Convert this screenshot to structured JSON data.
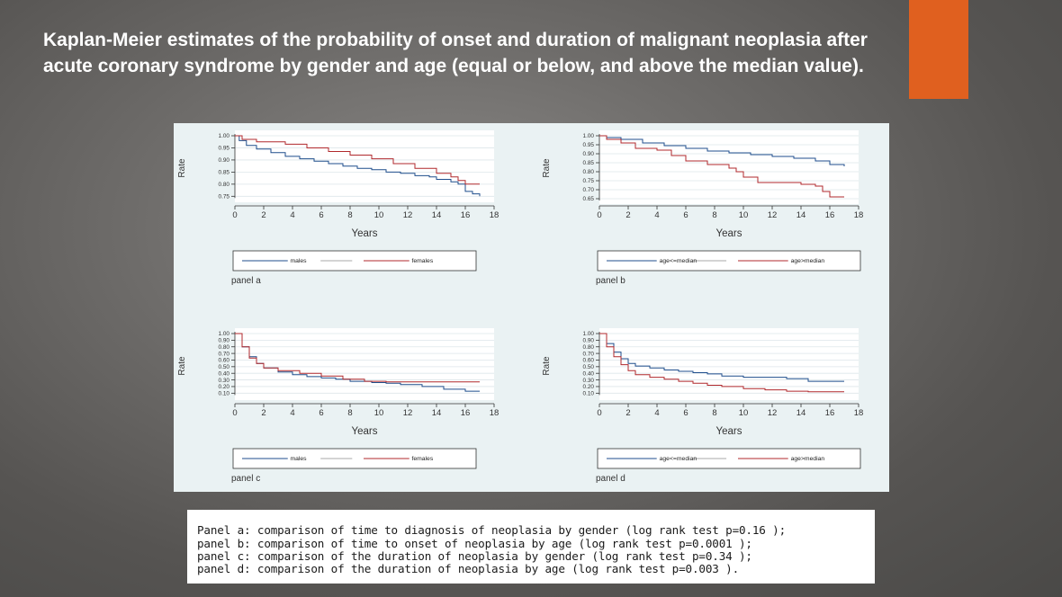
{
  "slide": {
    "title": "Kaplan-Meier estimates of the probability of onset and duration of malignant neoplasia after acute coronary syndrome by gender and age (equal or below, and above the median value).",
    "accent_color": "#e0601f"
  },
  "colors": {
    "blue": "#1f4e8c",
    "red": "#b0282c",
    "figure_bg": "#eaf2f3"
  },
  "caption": {
    "lines": [
      "Panel a: comparison of time to diagnosis of neoplasia by gender (log rank test p=0.16 );",
      "panel b: comparison of time to onset of neoplasia by age (log rank test p=0.0001 );",
      "panel c: comparison of the duration of neoplasia by gender (log rank test p=0.34 );",
      "panel d: comparison of the duration of neoplasia by age (log rank test p=0.003 )."
    ]
  },
  "chart_data": [
    {
      "type": "line",
      "panel_label": "panel a",
      "xlabel": "Years",
      "ylabel": "Rate",
      "xlim": [
        0,
        18
      ],
      "ylim": [
        0.74,
        1.0
      ],
      "xticks": [
        "0",
        "2",
        "4",
        "6",
        "8",
        "10",
        "12",
        "14",
        "16",
        "18"
      ],
      "yticks": [
        "1.00",
        "0.95",
        "0.90",
        "0.85",
        "0.80",
        "0.75"
      ],
      "series": [
        {
          "name": "males",
          "color": "blue",
          "x": [
            0,
            0.3,
            0.8,
            1.5,
            2.5,
            3.5,
            4.5,
            5.5,
            6.5,
            7.5,
            8.5,
            9.5,
            10.5,
            11.5,
            12.5,
            13.5,
            14.0,
            15.0,
            15.5,
            16.0,
            16.5,
            17.0
          ],
          "y": [
            1.0,
            0.98,
            0.96,
            0.945,
            0.93,
            0.915,
            0.905,
            0.895,
            0.885,
            0.875,
            0.865,
            0.86,
            0.85,
            0.845,
            0.835,
            0.83,
            0.82,
            0.81,
            0.8,
            0.77,
            0.76,
            0.75
          ]
        },
        {
          "name": "females",
          "color": "red",
          "x": [
            0,
            0.5,
            1.5,
            3.5,
            5.0,
            6.5,
            8.0,
            9.5,
            11.0,
            12.5,
            14.0,
            15.0,
            15.5,
            16.0,
            17.0
          ],
          "y": [
            1.0,
            0.985,
            0.975,
            0.965,
            0.95,
            0.935,
            0.92,
            0.905,
            0.885,
            0.865,
            0.845,
            0.83,
            0.815,
            0.8,
            0.8
          ]
        }
      ]
    },
    {
      "type": "line",
      "panel_label": "panel b",
      "xlabel": "Years",
      "ylabel": "Rate",
      "xlim": [
        0,
        18
      ],
      "ylim": [
        0.64,
        1.0
      ],
      "xticks": [
        "0",
        "2",
        "4",
        "6",
        "8",
        "10",
        "12",
        "14",
        "16",
        "18"
      ],
      "yticks": [
        "1.00",
        "0.95",
        "0.90",
        "0.85",
        "0.80",
        "0.75",
        "0.70",
        "0.65"
      ],
      "series": [
        {
          "name": "age<=median",
          "color": "blue",
          "x": [
            0,
            0.5,
            1.5,
            3.0,
            4.5,
            6.0,
            7.5,
            9.0,
            10.5,
            12.0,
            13.5,
            15.0,
            16.0,
            17.0
          ],
          "y": [
            1.0,
            0.99,
            0.98,
            0.96,
            0.945,
            0.93,
            0.915,
            0.905,
            0.895,
            0.885,
            0.875,
            0.86,
            0.84,
            0.83
          ]
        },
        {
          "name": "age>median",
          "color": "red",
          "x": [
            0,
            0.5,
            1.5,
            2.5,
            4.0,
            5.0,
            6.0,
            7.5,
            9.0,
            9.5,
            10.0,
            11.0,
            12.5,
            14.0,
            15.0,
            15.5,
            16.0,
            17.0
          ],
          "y": [
            1.0,
            0.98,
            0.96,
            0.93,
            0.92,
            0.89,
            0.86,
            0.84,
            0.82,
            0.8,
            0.77,
            0.74,
            0.74,
            0.73,
            0.72,
            0.69,
            0.66,
            0.66
          ]
        }
      ]
    },
    {
      "type": "line",
      "panel_label": "panel c",
      "xlabel": "Years",
      "ylabel": "Rate",
      "xlim": [
        0,
        18
      ],
      "ylim": [
        0.05,
        1.0
      ],
      "xticks": [
        "0",
        "2",
        "4",
        "6",
        "8",
        "10",
        "12",
        "14",
        "16",
        "18"
      ],
      "yticks": [
        "1.00",
        "0.90",
        "0.80",
        "0.70",
        "0.60",
        "0.50",
        "0.40",
        "0.30",
        "0.20",
        "0.10"
      ],
      "series": [
        {
          "name": "males",
          "color": "blue",
          "x": [
            0,
            0.5,
            1.0,
            1.5,
            2.0,
            3.0,
            4.0,
            5.0,
            6.0,
            7.0,
            8.0,
            9.5,
            10.5,
            11.5,
            13.0,
            14.5,
            16.0,
            17.0
          ],
          "y": [
            1.0,
            0.8,
            0.65,
            0.55,
            0.48,
            0.42,
            0.38,
            0.35,
            0.33,
            0.31,
            0.28,
            0.26,
            0.25,
            0.23,
            0.2,
            0.16,
            0.13,
            0.13
          ]
        },
        {
          "name": "females",
          "color": "red",
          "x": [
            0,
            0.5,
            1.0,
            1.5,
            2.0,
            3.0,
            4.5,
            6.0,
            7.5,
            9.0,
            10.5,
            12.0,
            14.0,
            16.0,
            17.0
          ],
          "y": [
            1.0,
            0.8,
            0.63,
            0.55,
            0.48,
            0.44,
            0.4,
            0.36,
            0.31,
            0.28,
            0.27,
            0.27,
            0.27,
            0.27,
            0.27
          ]
        }
      ]
    },
    {
      "type": "line",
      "panel_label": "panel d",
      "xlabel": "Years",
      "ylabel": "Rate",
      "xlim": [
        0,
        18
      ],
      "ylim": [
        0.05,
        1.0
      ],
      "xticks": [
        "0",
        "2",
        "4",
        "6",
        "8",
        "10",
        "12",
        "14",
        "16",
        "18"
      ],
      "yticks": [
        "1.00",
        "0.90",
        "0.80",
        "0.70",
        "0.60",
        "0.50",
        "0.40",
        "0.30",
        "0.20",
        "0.10"
      ],
      "series": [
        {
          "name": "age<=median",
          "color": "blue",
          "x": [
            0,
            0.5,
            1.0,
            1.5,
            2.0,
            2.5,
            3.5,
            4.5,
            5.5,
            6.5,
            7.5,
            8.5,
            10.0,
            11.5,
            13.0,
            14.5,
            16.0,
            17.0
          ],
          "y": [
            1.0,
            0.85,
            0.72,
            0.62,
            0.55,
            0.51,
            0.48,
            0.45,
            0.43,
            0.41,
            0.39,
            0.36,
            0.34,
            0.34,
            0.32,
            0.28,
            0.28,
            0.28
          ]
        },
        {
          "name": "age>median",
          "color": "red",
          "x": [
            0,
            0.5,
            1.0,
            1.5,
            2.0,
            2.5,
            3.5,
            4.5,
            5.5,
            6.5,
            7.5,
            8.5,
            10.0,
            11.5,
            13.0,
            14.5,
            16.0,
            17.0
          ],
          "y": [
            1.0,
            0.8,
            0.65,
            0.53,
            0.44,
            0.38,
            0.34,
            0.31,
            0.28,
            0.25,
            0.22,
            0.2,
            0.17,
            0.15,
            0.13,
            0.12,
            0.12,
            0.12
          ]
        }
      ]
    }
  ]
}
